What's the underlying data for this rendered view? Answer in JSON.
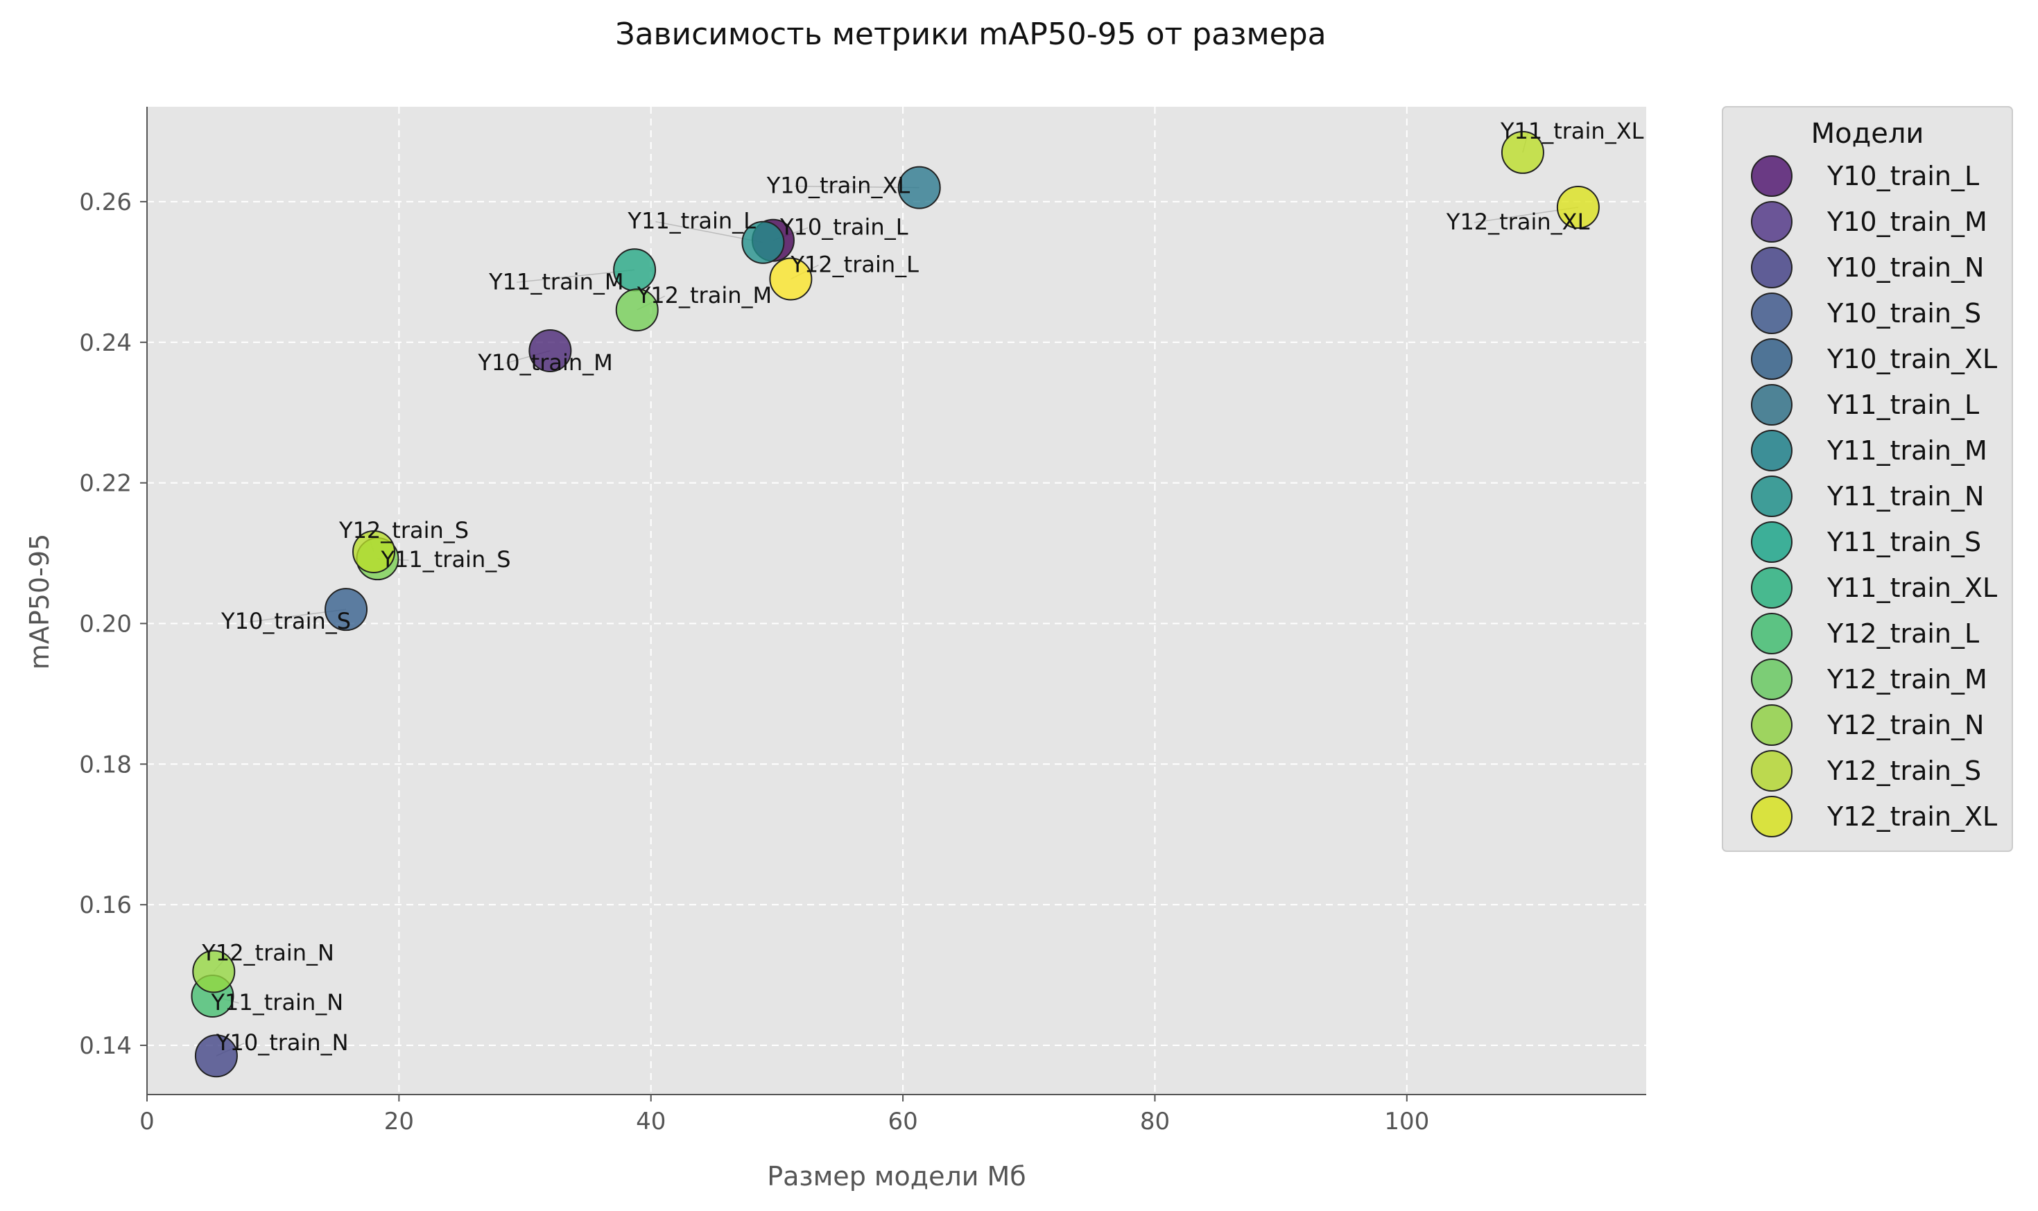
{
  "chart_data": {
    "type": "scatter",
    "title": "Зависимость метрики mAP50-95 от размера",
    "xlabel": "Размер модели Мб",
    "ylabel": "mAP50-95",
    "xlim": [
      0,
      119
    ],
    "ylim": [
      0.133,
      0.2735
    ],
    "xticks": [
      0,
      20,
      40,
      60,
      80,
      100
    ],
    "xtick_labels": [
      "0",
      "20",
      "40",
      "60",
      "80",
      "100"
    ],
    "yticks": [
      0.14,
      0.16,
      0.18,
      0.2,
      0.22,
      0.24,
      0.26
    ],
    "ytick_labels": [
      "0.14",
      "0.16",
      "0.18",
      "0.20",
      "0.22",
      "0.24",
      "0.26"
    ],
    "grid": true,
    "legend_title": "Модели",
    "legend_position": "outside-right",
    "points": [
      {
        "name": "Y10_train_L",
        "x": 49.7,
        "y": 0.2545,
        "color": "#440154"
      },
      {
        "name": "Y10_train_M",
        "x": 32.0,
        "y": 0.2388,
        "color": "#482475"
      },
      {
        "name": "Y10_train_N",
        "x": 5.5,
        "y": 0.1385,
        "color": "#414487"
      },
      {
        "name": "Y10_train_S",
        "x": 15.8,
        "y": 0.202,
        "color": "#355f8d"
      },
      {
        "name": "Y10_train_XL",
        "x": 61.3,
        "y": 0.262,
        "color": "#2a788e"
      },
      {
        "name": "Y11_train_L",
        "x": 48.9,
        "y": 0.2542,
        "color": "#21918c"
      },
      {
        "name": "Y11_train_M",
        "x": 38.7,
        "y": 0.2503,
        "color": "#22a884"
      },
      {
        "name": "Y11_train_N",
        "x": 5.2,
        "y": 0.147,
        "color": "#44bf70"
      },
      {
        "name": "Y11_train_S",
        "x": 18.3,
        "y": 0.2092,
        "color": "#7ad151"
      },
      {
        "name": "Y11_train_XL",
        "x": 109.2,
        "y": 0.267,
        "color": "#bddf26"
      },
      {
        "name": "Y12_train_L",
        "x": 51.1,
        "y": 0.249,
        "color": "#fde725"
      },
      {
        "name": "Y12_train_M",
        "x": 38.9,
        "y": 0.2446,
        "color": "#73d055"
      },
      {
        "name": "Y12_train_N",
        "x": 5.3,
        "y": 0.1505,
        "color": "#95d840"
      },
      {
        "name": "Y12_train_S",
        "x": 18.0,
        "y": 0.2102,
        "color": "#b8de29"
      },
      {
        "name": "Y12_train_XL",
        "x": 113.6,
        "y": 0.2592,
        "color": "#dce319"
      }
    ]
  },
  "legend": {
    "title": "Модели",
    "items": [
      {
        "label": "Y10_train_L",
        "color": "#6a3a84"
      },
      {
        "label": "Y10_train_M",
        "color": "#6b5597"
      },
      {
        "label": "Y10_train_N",
        "color": "#5f5d96"
      },
      {
        "label": "Y10_train_S",
        "color": "#5a6f9a"
      },
      {
        "label": "Y10_train_XL",
        "color": "#4f7496"
      },
      {
        "label": "Y11_train_L",
        "color": "#4e8396"
      },
      {
        "label": "Y11_train_M",
        "color": "#3d8f97"
      },
      {
        "label": "Y11_train_N",
        "color": "#3f9d98"
      },
      {
        "label": "Y11_train_S",
        "color": "#3daf98"
      },
      {
        "label": "Y11_train_XL",
        "color": "#48b98f"
      },
      {
        "label": "Y12_train_L",
        "color": "#5cc383"
      },
      {
        "label": "Y12_train_M",
        "color": "#7ccd76"
      },
      {
        "label": "Y12_train_N",
        "color": "#9ed45f"
      },
      {
        "label": "Y12_train_S",
        "color": "#bcd94f"
      },
      {
        "label": "Y12_train_XL",
        "color": "#d9e23f"
      }
    ]
  }
}
